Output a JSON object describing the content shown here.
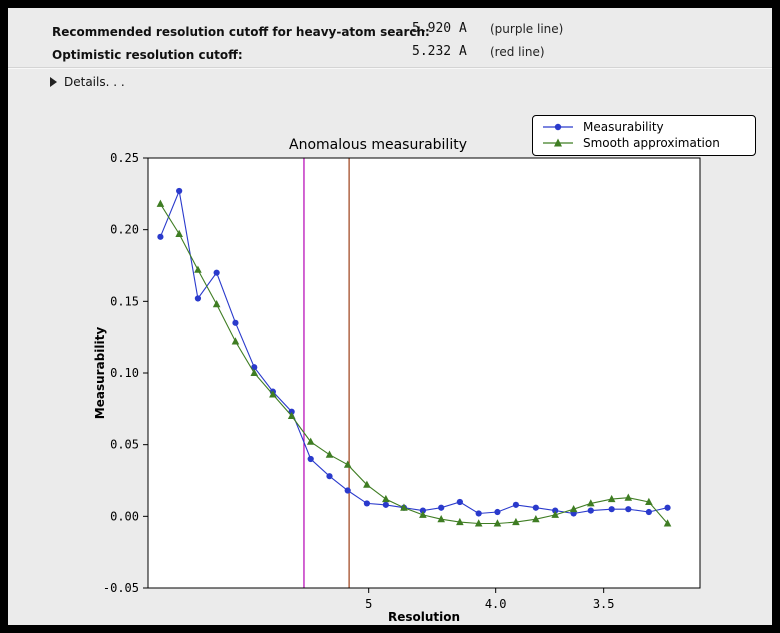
{
  "header": {
    "row1_label": "Recommended resolution cutoff for heavy-atom search:",
    "row1_value": "5.920 A",
    "row1_note": "(purple line)",
    "row2_label": "Optimistic resolution cutoff:",
    "row2_value": "5.232 A",
    "row2_note": "(red line)",
    "details_label": "Details. . ."
  },
  "chart_data": {
    "type": "line",
    "title": "Anomalous measurability",
    "xlabel": "Resolution",
    "ylabel": "Measurability",
    "ylim": [
      -0.05,
      0.25
    ],
    "y_ticks": [
      0.25,
      0.2,
      0.15,
      0.1,
      0.05,
      0.0,
      -0.05
    ],
    "x_ticks": [
      {
        "label": "5",
        "d": 5.0
      },
      {
        "label": "4.0",
        "d": 4.0
      },
      {
        "label": "3.5",
        "d": 3.5
      }
    ],
    "x_axis_note": "resolution in Angstrom, reversed axis, linear in 1/d^2",
    "plot_bg": "#ffffff",
    "figure_bg": "#ebebeb",
    "resolution_bins": [
      17.96,
      12.48,
      10.13,
      8.75,
      7.81,
      7.12,
      6.59,
      6.16,
      5.8,
      5.5,
      5.25,
      5.02,
      4.82,
      4.65,
      4.49,
      4.35,
      4.22,
      4.1,
      3.99,
      3.89,
      3.79,
      3.7,
      3.62,
      3.55,
      3.47,
      3.41,
      3.34,
      3.28
    ],
    "series": [
      {
        "name": "Measurability",
        "color": "#2a3acc",
        "marker": "circle",
        "values": [
          0.195,
          0.227,
          0.152,
          0.17,
          0.135,
          0.104,
          0.087,
          0.073,
          0.04,
          0.028,
          0.018,
          0.009,
          0.008,
          0.006,
          0.004,
          0.006,
          0.01,
          0.002,
          0.003,
          0.008,
          0.006,
          0.004,
          0.002,
          0.004,
          0.005,
          0.005,
          0.003,
          0.006
        ]
      },
      {
        "name": "Smooth approximation",
        "color": "#3f7d23",
        "marker": "triangle",
        "values": [
          0.218,
          0.197,
          0.172,
          0.148,
          0.122,
          0.1,
          0.085,
          0.07,
          0.052,
          0.043,
          0.036,
          0.022,
          0.012,
          0.006,
          0.001,
          -0.002,
          -0.004,
          -0.005,
          -0.005,
          -0.004,
          -0.002,
          0.001,
          0.005,
          0.009,
          0.012,
          0.013,
          0.01,
          -0.005
        ]
      }
    ],
    "vlines": [
      {
        "d": 5.92,
        "color": "#b300b3",
        "label": "purple line"
      },
      {
        "d": 5.232,
        "color": "#9c3d16",
        "label": "red line"
      }
    ]
  }
}
